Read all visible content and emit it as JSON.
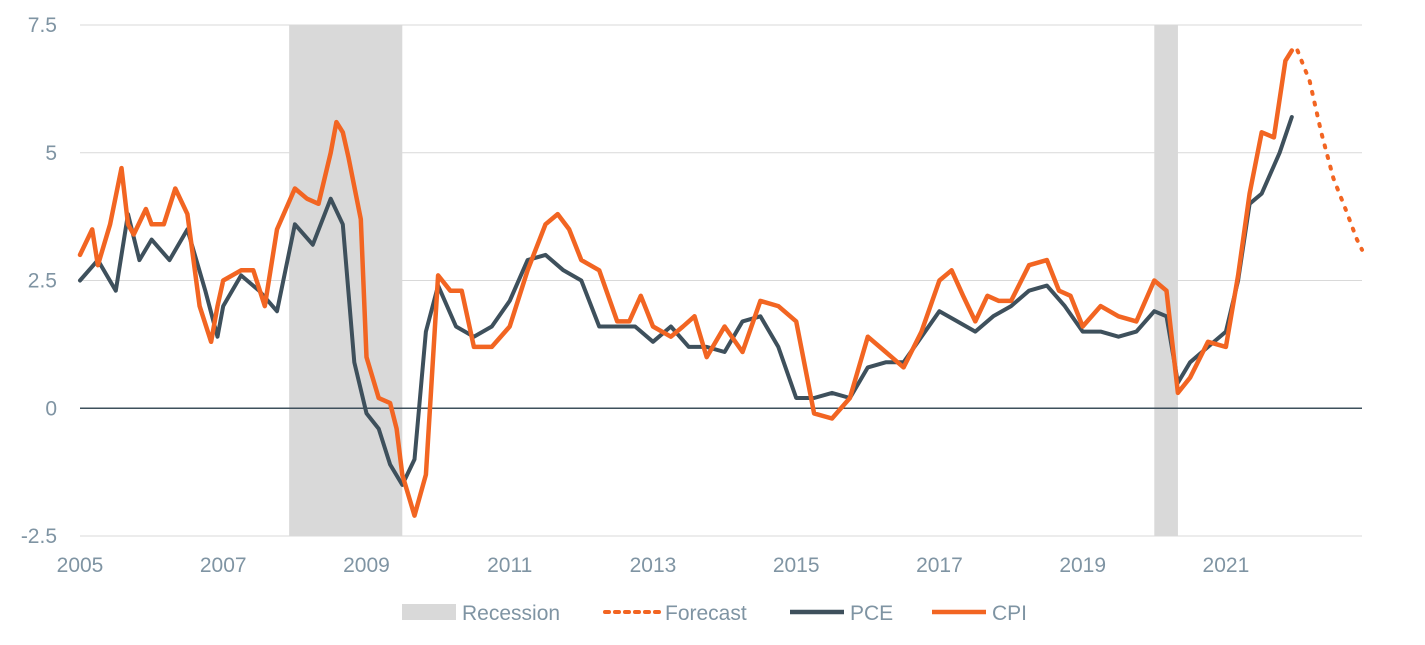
{
  "chart_data": {
    "type": "line",
    "title": "",
    "xlabel": "",
    "ylabel": "",
    "xlim": [
      2005,
      2022.9
    ],
    "ylim": [
      -2.5,
      7.5
    ],
    "y_ticks": [
      "7.5",
      "5",
      "2.5",
      "0",
      "-2.5"
    ],
    "y_tick_values": [
      7.5,
      5,
      2.5,
      0,
      -2.5
    ],
    "x_ticks": [
      "2005",
      "2007",
      "2009",
      "2011",
      "2013",
      "2015",
      "2017",
      "2019",
      "2021"
    ],
    "x_tick_values": [
      2005,
      2007,
      2009,
      2011,
      2013,
      2015,
      2017,
      2019,
      2021
    ],
    "grid": true,
    "legend_position": "bottom",
    "recessions": [
      [
        2007.92,
        2009.5
      ],
      [
        2020.0,
        2020.33
      ]
    ],
    "series": [
      {
        "name": "PCE",
        "color": "#3e505c",
        "x": [
          2005.0,
          2005.25,
          2005.5,
          2005.67,
          2005.83,
          2006.0,
          2006.25,
          2006.5,
          2006.75,
          2006.92,
          2007.0,
          2007.25,
          2007.5,
          2007.75,
          2008.0,
          2008.25,
          2008.5,
          2008.67,
          2008.83,
          2009.0,
          2009.17,
          2009.33,
          2009.5,
          2009.67,
          2009.83,
          2010.0,
          2010.25,
          2010.5,
          2010.75,
          2011.0,
          2011.25,
          2011.5,
          2011.75,
          2012.0,
          2012.25,
          2012.5,
          2012.75,
          2013.0,
          2013.25,
          2013.5,
          2013.75,
          2014.0,
          2014.25,
          2014.5,
          2014.75,
          2015.0,
          2015.25,
          2015.5,
          2015.75,
          2016.0,
          2016.25,
          2016.5,
          2016.75,
          2017.0,
          2017.25,
          2017.5,
          2017.75,
          2018.0,
          2018.25,
          2018.5,
          2018.75,
          2019.0,
          2019.25,
          2019.5,
          2019.75,
          2020.0,
          2020.17,
          2020.33,
          2020.5,
          2020.75,
          2021.0,
          2021.17,
          2021.33,
          2021.5,
          2021.75,
          2021.92
        ],
        "values": [
          2.5,
          2.9,
          2.3,
          3.8,
          2.9,
          3.3,
          2.9,
          3.5,
          2.3,
          1.4,
          2.0,
          2.6,
          2.3,
          1.9,
          3.6,
          3.2,
          4.1,
          3.6,
          0.9,
          -0.1,
          -0.4,
          -1.1,
          -1.5,
          -1.0,
          1.5,
          2.4,
          1.6,
          1.4,
          1.6,
          2.1,
          2.9,
          3.0,
          2.7,
          2.5,
          1.6,
          1.6,
          1.6,
          1.3,
          1.6,
          1.2,
          1.2,
          1.1,
          1.7,
          1.8,
          1.2,
          0.2,
          0.2,
          0.3,
          0.2,
          0.8,
          0.9,
          0.9,
          1.4,
          1.9,
          1.7,
          1.5,
          1.8,
          2.0,
          2.3,
          2.4,
          2.0,
          1.5,
          1.5,
          1.4,
          1.5,
          1.9,
          1.8,
          0.5,
          0.9,
          1.2,
          1.5,
          2.5,
          4.0,
          4.2,
          5.0,
          5.7
        ]
      },
      {
        "name": "CPI",
        "color": "#f26522",
        "x": [
          2005.0,
          2005.17,
          2005.25,
          2005.42,
          2005.58,
          2005.67,
          2005.75,
          2005.92,
          2006.0,
          2006.17,
          2006.33,
          2006.5,
          2006.67,
          2006.83,
          2006.92,
          2007.0,
          2007.25,
          2007.42,
          2007.58,
          2007.75,
          2008.0,
          2008.17,
          2008.33,
          2008.5,
          2008.58,
          2008.67,
          2008.75,
          2008.92,
          2009.0,
          2009.17,
          2009.33,
          2009.42,
          2009.5,
          2009.67,
          2009.83,
          2010.0,
          2010.17,
          2010.33,
          2010.5,
          2010.75,
          2011.0,
          2011.25,
          2011.5,
          2011.67,
          2011.83,
          2012.0,
          2012.25,
          2012.5,
          2012.67,
          2012.83,
          2013.0,
          2013.25,
          2013.42,
          2013.58,
          2013.75,
          2014.0,
          2014.25,
          2014.5,
          2014.75,
          2015.0,
          2015.25,
          2015.5,
          2015.75,
          2016.0,
          2016.25,
          2016.5,
          2016.75,
          2017.0,
          2017.17,
          2017.33,
          2017.5,
          2017.67,
          2017.83,
          2018.0,
          2018.25,
          2018.5,
          2018.67,
          2018.83,
          2019.0,
          2019.25,
          2019.5,
          2019.75,
          2020.0,
          2020.17,
          2020.33,
          2020.5,
          2020.75,
          2021.0,
          2021.17,
          2021.33,
          2021.5,
          2021.67,
          2021.83,
          2021.92
        ],
        "values": [
          3.0,
          3.5,
          2.8,
          3.6,
          4.7,
          3.6,
          3.4,
          3.9,
          3.6,
          3.6,
          4.3,
          3.8,
          2.0,
          1.3,
          2.0,
          2.5,
          2.7,
          2.7,
          2.0,
          3.5,
          4.3,
          4.1,
          4.0,
          5.0,
          5.6,
          5.4,
          4.9,
          3.7,
          1.0,
          0.2,
          0.1,
          -0.4,
          -1.3,
          -2.1,
          -1.3,
          2.6,
          2.3,
          2.3,
          1.2,
          1.2,
          1.6,
          2.7,
          3.6,
          3.8,
          3.5,
          2.9,
          2.7,
          1.7,
          1.7,
          2.2,
          1.6,
          1.4,
          1.6,
          1.8,
          1.0,
          1.6,
          1.1,
          2.1,
          2.0,
          1.7,
          -0.1,
          -0.2,
          0.2,
          1.4,
          1.1,
          0.8,
          1.5,
          2.5,
          2.7,
          2.2,
          1.7,
          2.2,
          2.1,
          2.1,
          2.8,
          2.9,
          2.3,
          2.2,
          1.6,
          2.0,
          1.8,
          1.7,
          2.5,
          2.3,
          0.3,
          0.6,
          1.3,
          1.2,
          2.6,
          4.2,
          5.4,
          5.3,
          6.8,
          7.0
        ]
      },
      {
        "name": "Forecast",
        "color": "#f26522",
        "x": [
          2022.0,
          2022.17,
          2022.33,
          2022.5,
          2022.67,
          2022.83,
          2022.9
        ],
        "values": [
          7.0,
          6.4,
          5.4,
          4.5,
          3.9,
          3.3,
          3.1
        ]
      }
    ],
    "legend": [
      {
        "label": "Recession",
        "kind": "area",
        "color": "#d9d9d9"
      },
      {
        "label": "Forecast",
        "kind": "dotted",
        "color": "#f26522"
      },
      {
        "label": "PCE",
        "kind": "line",
        "color": "#3e505c"
      },
      {
        "label": "CPI",
        "kind": "line",
        "color": "#f26522"
      }
    ]
  }
}
